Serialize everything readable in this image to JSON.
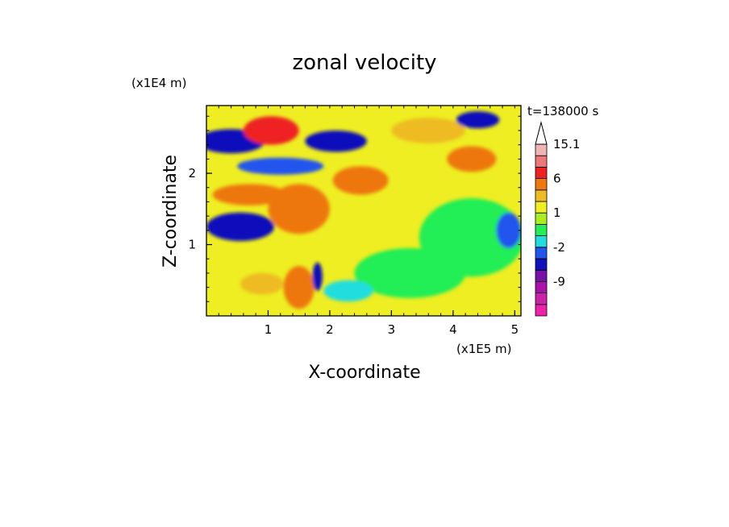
{
  "chart_data": {
    "type": "heatmap",
    "title": "zonal velocity",
    "xlabel": "X-coordinate",
    "ylabel": "Z-coordinate",
    "x_unit": "(x1E5 m)",
    "y_unit": "(x1E4 m)",
    "time_label": "t=138000 s",
    "xlim": [
      0,
      5.1
    ],
    "ylim": [
      0,
      2.95
    ],
    "x_ticks": [
      {
        "value": 1,
        "label": "1"
      },
      {
        "value": 2,
        "label": "2"
      },
      {
        "value": 3,
        "label": "3"
      },
      {
        "value": 4,
        "label": "4"
      },
      {
        "value": 5,
        "label": "5"
      }
    ],
    "y_ticks": [
      {
        "value": 1,
        "label": "1"
      },
      {
        "value": 2,
        "label": "2"
      }
    ],
    "colorbar": {
      "levels": [
        {
          "label": "",
          "color": "#ee22aa"
        },
        {
          "label": "",
          "color": "#cc22aa"
        },
        {
          "label": "-9",
          "color": "#aa11aa"
        },
        {
          "label": "",
          "color": "#7711aa"
        },
        {
          "label": "",
          "color": "#1111bb"
        },
        {
          "label": "-2",
          "color": "#2255ee"
        },
        {
          "label": "",
          "color": "#22dddd"
        },
        {
          "label": "",
          "color": "#22ee55"
        },
        {
          "label": "1",
          "color": "#aaee22"
        },
        {
          "label": "",
          "color": "#eeee22"
        },
        {
          "label": "",
          "color": "#eebb22"
        },
        {
          "label": "6",
          "color": "#ee7711"
        },
        {
          "label": "",
          "color": "#ee2222"
        },
        {
          "label": "",
          "color": "#ee7777"
        },
        {
          "label": "15.1",
          "color": "#f0b4b4"
        }
      ],
      "overflow_triangle_color": "#ffffff"
    },
    "grid": false,
    "legend_placement": "right colorbar",
    "field_description_blobs": [
      {
        "x": 0.4,
        "z": 2.45,
        "rx": 0.55,
        "rz": 0.17,
        "level": 4
      },
      {
        "x": 0.55,
        "z": 1.25,
        "rx": 0.55,
        "rz": 0.2,
        "level": 4
      },
      {
        "x": 1.05,
        "z": 2.6,
        "rx": 0.45,
        "rz": 0.2,
        "level": 12
      },
      {
        "x": 0.7,
        "z": 1.7,
        "rx": 0.6,
        "rz": 0.15,
        "level": 11
      },
      {
        "x": 1.2,
        "z": 2.1,
        "rx": 0.7,
        "rz": 0.12,
        "level": 5
      },
      {
        "x": 1.5,
        "z": 1.5,
        "rx": 0.5,
        "rz": 0.35,
        "level": 11
      },
      {
        "x": 2.1,
        "z": 2.45,
        "rx": 0.5,
        "rz": 0.15,
        "level": 4
      },
      {
        "x": 2.5,
        "z": 1.9,
        "rx": 0.45,
        "rz": 0.2,
        "level": 11
      },
      {
        "x": 3.6,
        "z": 2.6,
        "rx": 0.6,
        "rz": 0.18,
        "level": 10
      },
      {
        "x": 4.4,
        "z": 2.75,
        "rx": 0.35,
        "rz": 0.12,
        "level": 4
      },
      {
        "x": 4.3,
        "z": 2.2,
        "rx": 0.4,
        "rz": 0.18,
        "level": 11
      },
      {
        "x": 4.3,
        "z": 1.1,
        "rx": 0.85,
        "rz": 0.55,
        "level": 7
      },
      {
        "x": 3.3,
        "z": 0.6,
        "rx": 0.9,
        "rz": 0.35,
        "level": 7
      },
      {
        "x": 4.9,
        "z": 1.2,
        "rx": 0.2,
        "rz": 0.25,
        "level": 5
      },
      {
        "x": 1.5,
        "z": 0.4,
        "rx": 0.25,
        "rz": 0.3,
        "level": 11
      },
      {
        "x": 1.8,
        "z": 0.55,
        "rx": 0.08,
        "rz": 0.2,
        "level": 4
      },
      {
        "x": 0.9,
        "z": 0.45,
        "rx": 0.35,
        "rz": 0.15,
        "level": 10
      },
      {
        "x": 2.3,
        "z": 0.35,
        "rx": 0.4,
        "rz": 0.15,
        "level": 6
      }
    ]
  }
}
